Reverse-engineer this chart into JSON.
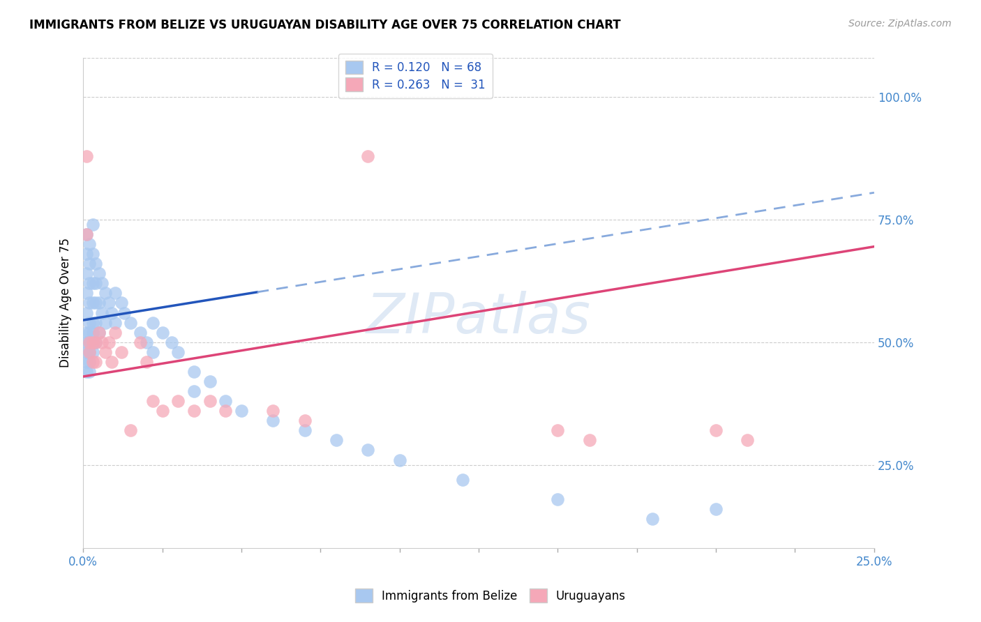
{
  "title": "IMMIGRANTS FROM BELIZE VS URUGUAYAN DISABILITY AGE OVER 75 CORRELATION CHART",
  "source": "Source: ZipAtlas.com",
  "ylabel": "Disability Age Over 75",
  "xlim": [
    0.0,
    0.25
  ],
  "ylim": [
    0.08,
    1.08
  ],
  "legend_label1": "R = 0.120   N = 68",
  "legend_label2": "R = 0.263   N =  31",
  "series1_color": "#a8c8f0",
  "series2_color": "#f5a8b8",
  "line1_color": "#2255bb",
  "line1_dash_color": "#88aadd",
  "line2_color": "#dd4477",
  "watermark": "ZIPatlas",
  "blue_r": 0.12,
  "pink_r": 0.263,
  "blue_points_x": [
    0.001,
    0.001,
    0.001,
    0.001,
    0.001,
    0.001,
    0.001,
    0.001,
    0.001,
    0.001,
    0.002,
    0.002,
    0.002,
    0.002,
    0.002,
    0.002,
    0.002,
    0.002,
    0.002,
    0.002,
    0.003,
    0.003,
    0.003,
    0.003,
    0.003,
    0.003,
    0.003,
    0.003,
    0.004,
    0.004,
    0.004,
    0.004,
    0.004,
    0.005,
    0.005,
    0.005,
    0.006,
    0.006,
    0.007,
    0.007,
    0.008,
    0.009,
    0.01,
    0.01,
    0.012,
    0.013,
    0.015,
    0.018,
    0.02,
    0.022,
    0.022,
    0.025,
    0.028,
    0.03,
    0.035,
    0.035,
    0.04,
    0.045,
    0.05,
    0.06,
    0.07,
    0.08,
    0.09,
    0.1,
    0.12,
    0.15,
    0.18,
    0.2
  ],
  "blue_points_y": [
    0.72,
    0.68,
    0.64,
    0.6,
    0.56,
    0.52,
    0.5,
    0.48,
    0.46,
    0.44,
    0.7,
    0.66,
    0.62,
    0.58,
    0.54,
    0.52,
    0.5,
    0.48,
    0.46,
    0.44,
    0.74,
    0.68,
    0.62,
    0.58,
    0.54,
    0.52,
    0.5,
    0.48,
    0.66,
    0.62,
    0.58,
    0.54,
    0.5,
    0.64,
    0.58,
    0.52,
    0.62,
    0.56,
    0.6,
    0.54,
    0.58,
    0.56,
    0.6,
    0.54,
    0.58,
    0.56,
    0.54,
    0.52,
    0.5,
    0.54,
    0.48,
    0.52,
    0.5,
    0.48,
    0.44,
    0.4,
    0.42,
    0.38,
    0.36,
    0.34,
    0.32,
    0.3,
    0.28,
    0.26,
    0.22,
    0.18,
    0.14,
    0.16
  ],
  "pink_points_x": [
    0.001,
    0.001,
    0.002,
    0.002,
    0.003,
    0.003,
    0.004,
    0.004,
    0.005,
    0.006,
    0.007,
    0.008,
    0.009,
    0.01,
    0.012,
    0.015,
    0.018,
    0.02,
    0.022,
    0.025,
    0.03,
    0.035,
    0.04,
    0.045,
    0.06,
    0.07,
    0.09,
    0.15,
    0.16,
    0.2,
    0.21
  ],
  "pink_points_y": [
    0.88,
    0.72,
    0.5,
    0.48,
    0.5,
    0.46,
    0.5,
    0.46,
    0.52,
    0.5,
    0.48,
    0.5,
    0.46,
    0.52,
    0.48,
    0.32,
    0.5,
    0.46,
    0.38,
    0.36,
    0.38,
    0.36,
    0.38,
    0.36,
    0.36,
    0.34,
    0.88,
    0.32,
    0.3,
    0.32,
    0.3
  ],
  "blue_line_x0": 0.0,
  "blue_line_x_solid_end": 0.055,
  "blue_line_x1": 0.25,
  "blue_line_y0": 0.545,
  "blue_line_y1": 0.805,
  "pink_line_x0": 0.0,
  "pink_line_x1": 0.25,
  "pink_line_y0": 0.43,
  "pink_line_y1": 0.695
}
